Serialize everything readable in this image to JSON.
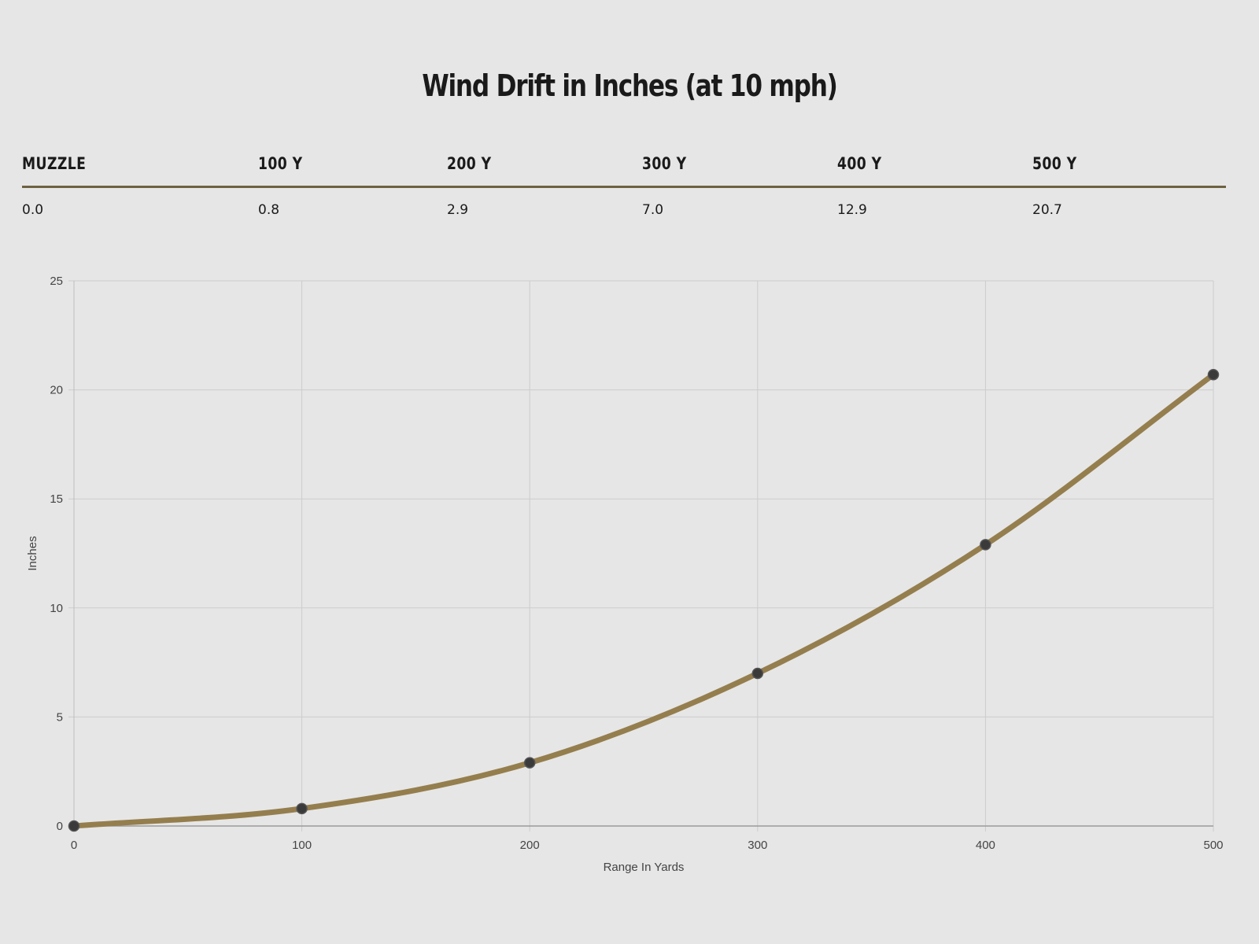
{
  "title": "Wind Drift in Inches (at 10 mph)",
  "table": {
    "headers": [
      "MUZZLE",
      "100 Y",
      "200 Y",
      "300 Y",
      "400 Y",
      "500 Y"
    ],
    "values": [
      "0.0",
      "0.8",
      "2.9",
      "7.0",
      "12.9",
      "20.7"
    ]
  },
  "colors": {
    "line": "#957e4e",
    "point": "#3a3a3a",
    "grid": "#cccccc",
    "rule": "#6e6242",
    "background": "#e6e6e6"
  },
  "chart_data": {
    "type": "line",
    "x": [
      0,
      100,
      200,
      300,
      400,
      500
    ],
    "series": [
      {
        "values": [
          0.0,
          0.8,
          2.9,
          7.0,
          12.9,
          20.7
        ]
      }
    ],
    "xlabel": "Range In Yards",
    "ylabel": "Inches",
    "xlim": [
      0,
      500
    ],
    "ylim": [
      0,
      25
    ],
    "xticks": [
      0,
      100,
      200,
      300,
      400,
      500
    ],
    "yticks": [
      0,
      5,
      10,
      15,
      20,
      25
    ],
    "grid": true,
    "curve": "smooth"
  }
}
